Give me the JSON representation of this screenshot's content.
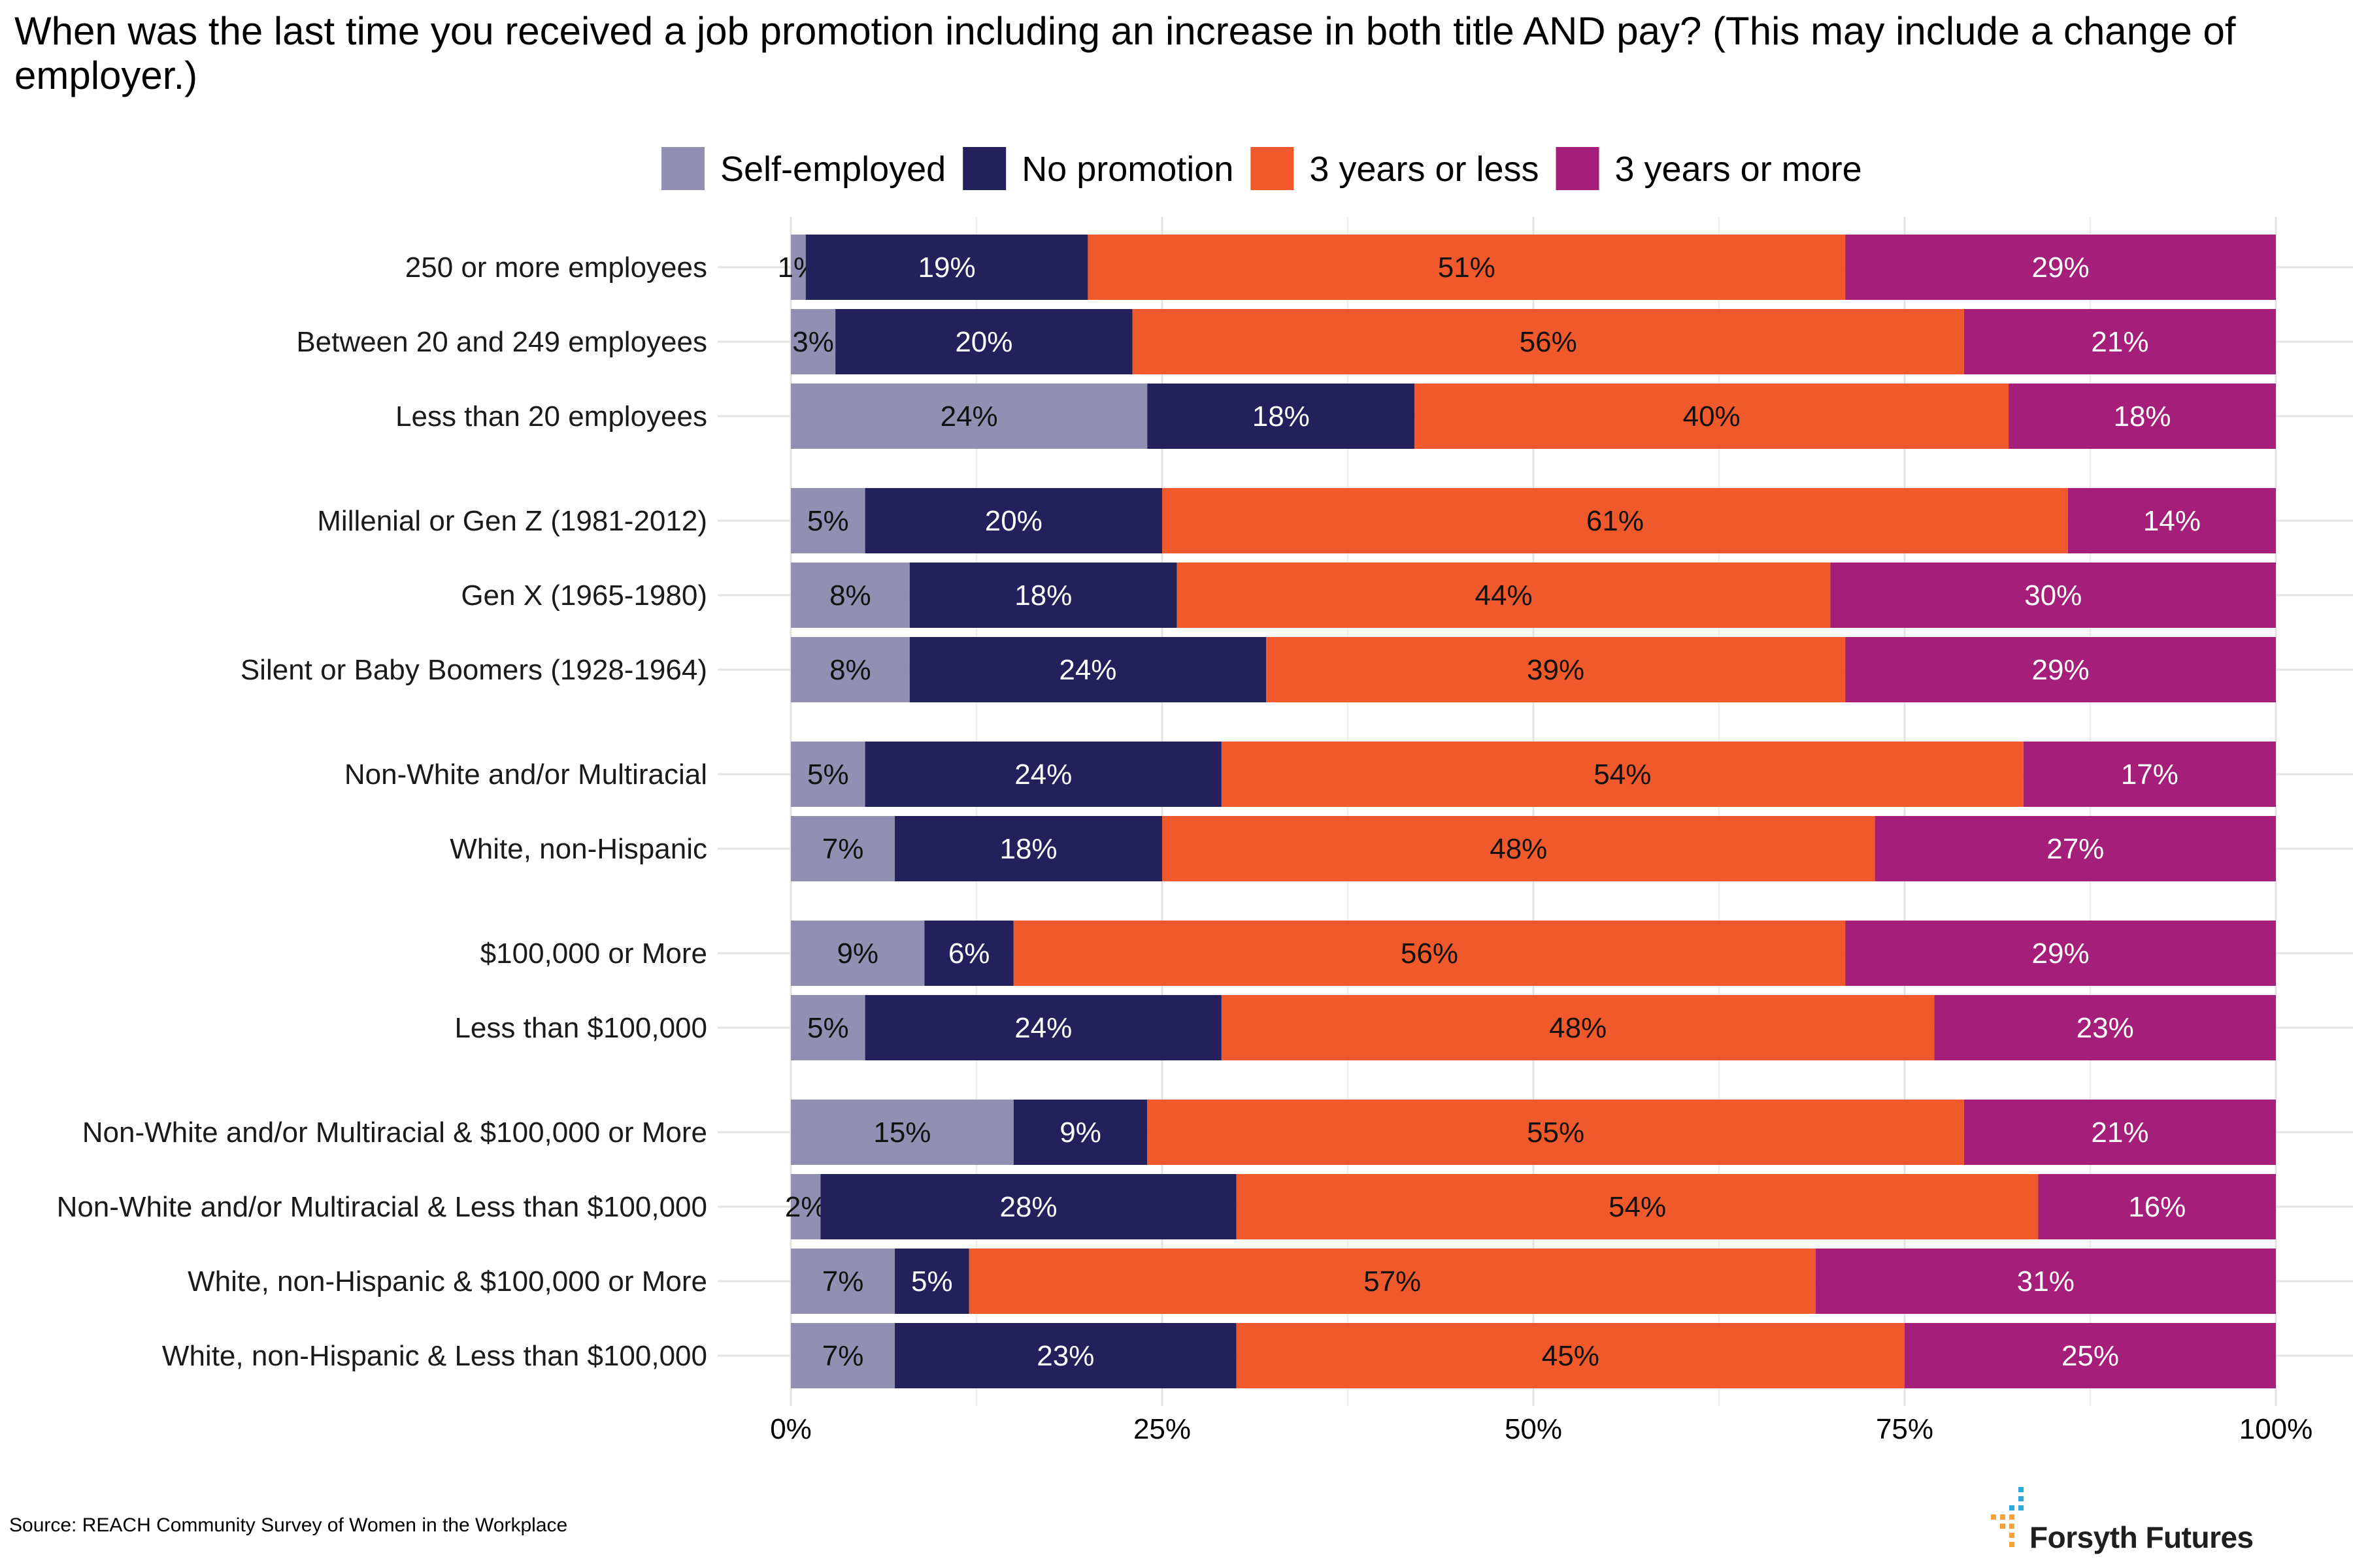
{
  "chart_data": {
    "type": "bar",
    "orientation": "horizontal",
    "stacked": "percent",
    "title": "When was the last time you received a job promotion including an increase in both title AND pay? (This may include a change of employer.)",
    "legend_position": "top",
    "xlim": [
      0,
      100
    ],
    "xticks": [
      "0%",
      "25%",
      "50%",
      "75%",
      "100%"
    ],
    "grid": true,
    "series": [
      {
        "name": "Self-employed",
        "color": "#9190b2"
      },
      {
        "name": "No promotion",
        "color": "#23205b"
      },
      {
        "name": "3 years or less",
        "color": "#f0592b"
      },
      {
        "name": "3 years or more",
        "color": "#a51e79"
      }
    ],
    "groups": [
      {
        "rows": [
          {
            "label": "250 or more employees",
            "values": [
              1,
              19,
              51,
              29
            ]
          },
          {
            "label": "Between 20 and 249 employees",
            "values": [
              3,
              20,
              56,
              21
            ]
          },
          {
            "label": "Less than 20 employees",
            "values": [
              24,
              18,
              40,
              18
            ]
          }
        ]
      },
      {
        "rows": [
          {
            "label": "Millenial or Gen Z (1981-2012)",
            "values": [
              5,
              20,
              61,
              14
            ]
          },
          {
            "label": "Gen X (1965-1980)",
            "values": [
              8,
              18,
              44,
              30
            ]
          },
          {
            "label": "Silent or Baby Boomers (1928-1964)",
            "values": [
              8,
              24,
              39,
              29
            ]
          }
        ]
      },
      {
        "rows": [
          {
            "label": "Non-White and/or Multiracial",
            "values": [
              5,
              24,
              54,
              17
            ]
          },
          {
            "label": "White, non-Hispanic",
            "values": [
              7,
              18,
              48,
              27
            ]
          }
        ]
      },
      {
        "rows": [
          {
            "label": "$100,000 or More",
            "values": [
              9,
              6,
              56,
              29
            ]
          },
          {
            "label": "Less than $100,000",
            "values": [
              5,
              24,
              48,
              23
            ]
          }
        ]
      },
      {
        "rows": [
          {
            "label": "Non-White and/or Multiracial & $100,000 or More",
            "values": [
              15,
              9,
              55,
              21
            ]
          },
          {
            "label": "Non-White and/or Multiracial & Less than $100,000",
            "values": [
              2,
              28,
              54,
              16
            ]
          },
          {
            "label": "White, non-Hispanic & $100,000 or More",
            "values": [
              7,
              5,
              57,
              31
            ]
          },
          {
            "label": "White, non-Hispanic & Less than $100,000",
            "values": [
              7,
              23,
              45,
              25
            ]
          }
        ]
      }
    ]
  },
  "source": "Source: REACH Community Survey of Women in the Workplace",
  "logo_text": "Forsyth Futures"
}
